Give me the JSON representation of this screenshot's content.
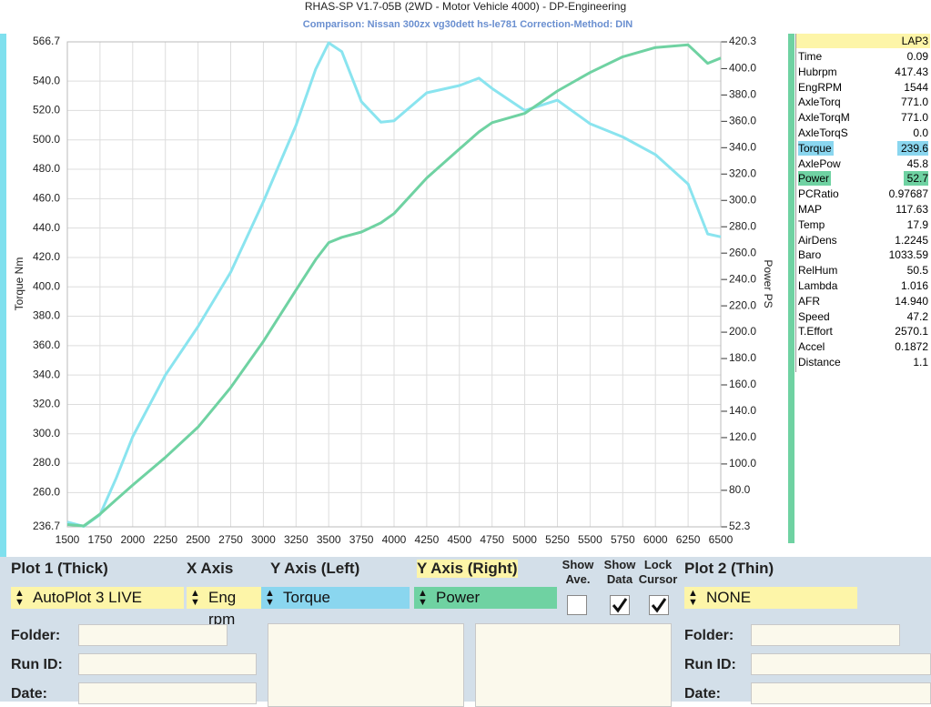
{
  "window_title": "RHAS-SP V1.7-05B   (2WD - Motor Vehicle 4000) - DP-Engineering",
  "chart_data": {
    "type": "line",
    "subtitle": "Comparison: Nissan 300zx vg30dett hs-le781     Correction-Method: DIN",
    "ylabel": "Torque Nm",
    "y2label": "Power PS",
    "x": [
      1500,
      1625,
      1750,
      1875,
      2000,
      2250,
      2500,
      2750,
      3000,
      3250,
      3400,
      3500,
      3600,
      3750,
      3900,
      4000,
      4250,
      4500,
      4650,
      4750,
      5000,
      5250,
      5500,
      5750,
      6000,
      6250,
      6400,
      6500
    ],
    "series": [
      {
        "name": "Torque",
        "color": "#8ae4ef",
        "axis": "y",
        "values": [
          240,
          237,
          245,
          270,
          298,
          340,
          373,
          410,
          458,
          510,
          548,
          566,
          560,
          526,
          512,
          513,
          532,
          537,
          542,
          535,
          520,
          527,
          511,
          502,
          490,
          470,
          436,
          434
        ]
      },
      {
        "name": "Power",
        "color": "#6fd2a2",
        "axis": "y2",
        "values": [
          54,
          53,
          62,
          73,
          84,
          105,
          128,
          158,
          193,
          232,
          255,
          268,
          272,
          276,
          283,
          290,
          317,
          339,
          352,
          359,
          366,
          383,
          397,
          409,
          416,
          418,
          404,
          408
        ]
      }
    ],
    "xlim": [
      1500,
      6500
    ],
    "xticks": [
      1500,
      1750,
      2000,
      2250,
      2500,
      2750,
      3000,
      3250,
      3500,
      3750,
      4000,
      4250,
      4500,
      4750,
      5000,
      5250,
      5500,
      5750,
      6000,
      6250,
      6500
    ],
    "ylim": [
      236.7,
      566.7
    ],
    "yticks": [
      236.7,
      {
        "value": 260,
        "label": "260.0"
      },
      {
        "value": 280,
        "label": "280.0"
      },
      {
        "value": 300,
        "label": "300.0"
      },
      {
        "value": 320,
        "label": "320.0"
      },
      {
        "value": 340,
        "label": "340.0"
      },
      {
        "value": 360,
        "label": "360.0"
      },
      {
        "value": 380,
        "label": "380.0"
      },
      {
        "value": 400,
        "label": "400.0"
      },
      {
        "value": 420,
        "label": "420.0"
      },
      {
        "value": 440,
        "label": "440.0"
      },
      {
        "value": 460,
        "label": "460.0"
      },
      {
        "value": 480,
        "label": "480.0"
      },
      {
        "value": 500,
        "label": "500.0"
      },
      {
        "value": 520,
        "label": "520.0"
      },
      {
        "value": 540,
        "label": "540.0"
      },
      566.7
    ],
    "y2lim": [
      52.3,
      420.3
    ],
    "y2ticks": [
      52.3,
      {
        "value": 80,
        "label": "80.0"
      },
      {
        "value": 100,
        "label": "100.0"
      },
      {
        "value": 120,
        "label": "120.0"
      },
      {
        "value": 140,
        "label": "140.0"
      },
      {
        "value": 160,
        "label": "160.0"
      },
      {
        "value": 180,
        "label": "180.0"
      },
      {
        "value": 200,
        "label": "200.0"
      },
      {
        "value": 220,
        "label": "220.0"
      },
      {
        "value": 240,
        "label": "240.0"
      },
      {
        "value": 260,
        "label": "260.0"
      },
      {
        "value": 280,
        "label": "280.0"
      },
      {
        "value": 300,
        "label": "300.0"
      },
      {
        "value": 320,
        "label": "320.0"
      },
      {
        "value": 340,
        "label": "340.0"
      },
      {
        "value": 360,
        "label": "360.0"
      },
      {
        "value": 380,
        "label": "380.0"
      },
      {
        "value": 400,
        "label": "400.0"
      },
      420.3
    ],
    "grid": true
  },
  "data_panel": {
    "header": "LAP3",
    "rows": [
      {
        "label": "Time",
        "value": "0.09"
      },
      {
        "label": "Hubrpm",
        "value": "417.43"
      },
      {
        "label": "EngRPM",
        "value": "1544"
      },
      {
        "label": "AxleTorq",
        "value": "771.0"
      },
      {
        "label": "AxleTorqM",
        "value": "771.0"
      },
      {
        "label": "AxleTorqS",
        "value": "0.0"
      },
      {
        "label": "Torque",
        "value": "239.6",
        "color": "#8ad6ef"
      },
      {
        "label": "AxlePow",
        "value": "45.8"
      },
      {
        "label": "Power",
        "value": "52.7",
        "color": "#6fd2a2"
      },
      {
        "label": "PCRatio",
        "value": "0.97687"
      },
      {
        "label": "MAP",
        "value": "117.63"
      },
      {
        "label": "Temp",
        "value": "17.9"
      },
      {
        "label": "AirDens",
        "value": "1.2245"
      },
      {
        "label": "Baro",
        "value": "1033.59"
      },
      {
        "label": "RelHum",
        "value": "50.5"
      },
      {
        "label": "Lambda",
        "value": "1.016"
      },
      {
        "label": "AFR",
        "value": "14.940"
      },
      {
        "label": "Speed",
        "value": "47.2"
      },
      {
        "label": "T.Effort",
        "value": "2570.1"
      },
      {
        "label": "Accel",
        "value": "0.1872"
      },
      {
        "label": "Distance",
        "value": "1.1"
      }
    ]
  },
  "controls": {
    "plot1": {
      "label": "Plot 1 (Thick)",
      "value": "AutoPlot 3 LIVE"
    },
    "x_axis": {
      "label": "X Axis",
      "value": "Eng rpm"
    },
    "y_left": {
      "label": "Y Axis (Left)",
      "value": "Torque"
    },
    "y_right": {
      "label": "Y Axis (Right)",
      "value": "Power"
    },
    "show_ave": {
      "lines": [
        "Show",
        "Ave."
      ],
      "checked": false
    },
    "show_data": {
      "lines": [
        "Show",
        "Data"
      ],
      "checked": true
    },
    "lock_cursor": {
      "lines": [
        "Lock",
        "Cursor"
      ],
      "checked": true
    },
    "plot2": {
      "label": "Plot 2 (Thin)",
      "value": "NONE"
    },
    "fields_left": [
      "Folder:",
      "Run ID:",
      "Date:"
    ],
    "fields_right": [
      "Folder:",
      "Run ID:",
      "Date:"
    ]
  }
}
